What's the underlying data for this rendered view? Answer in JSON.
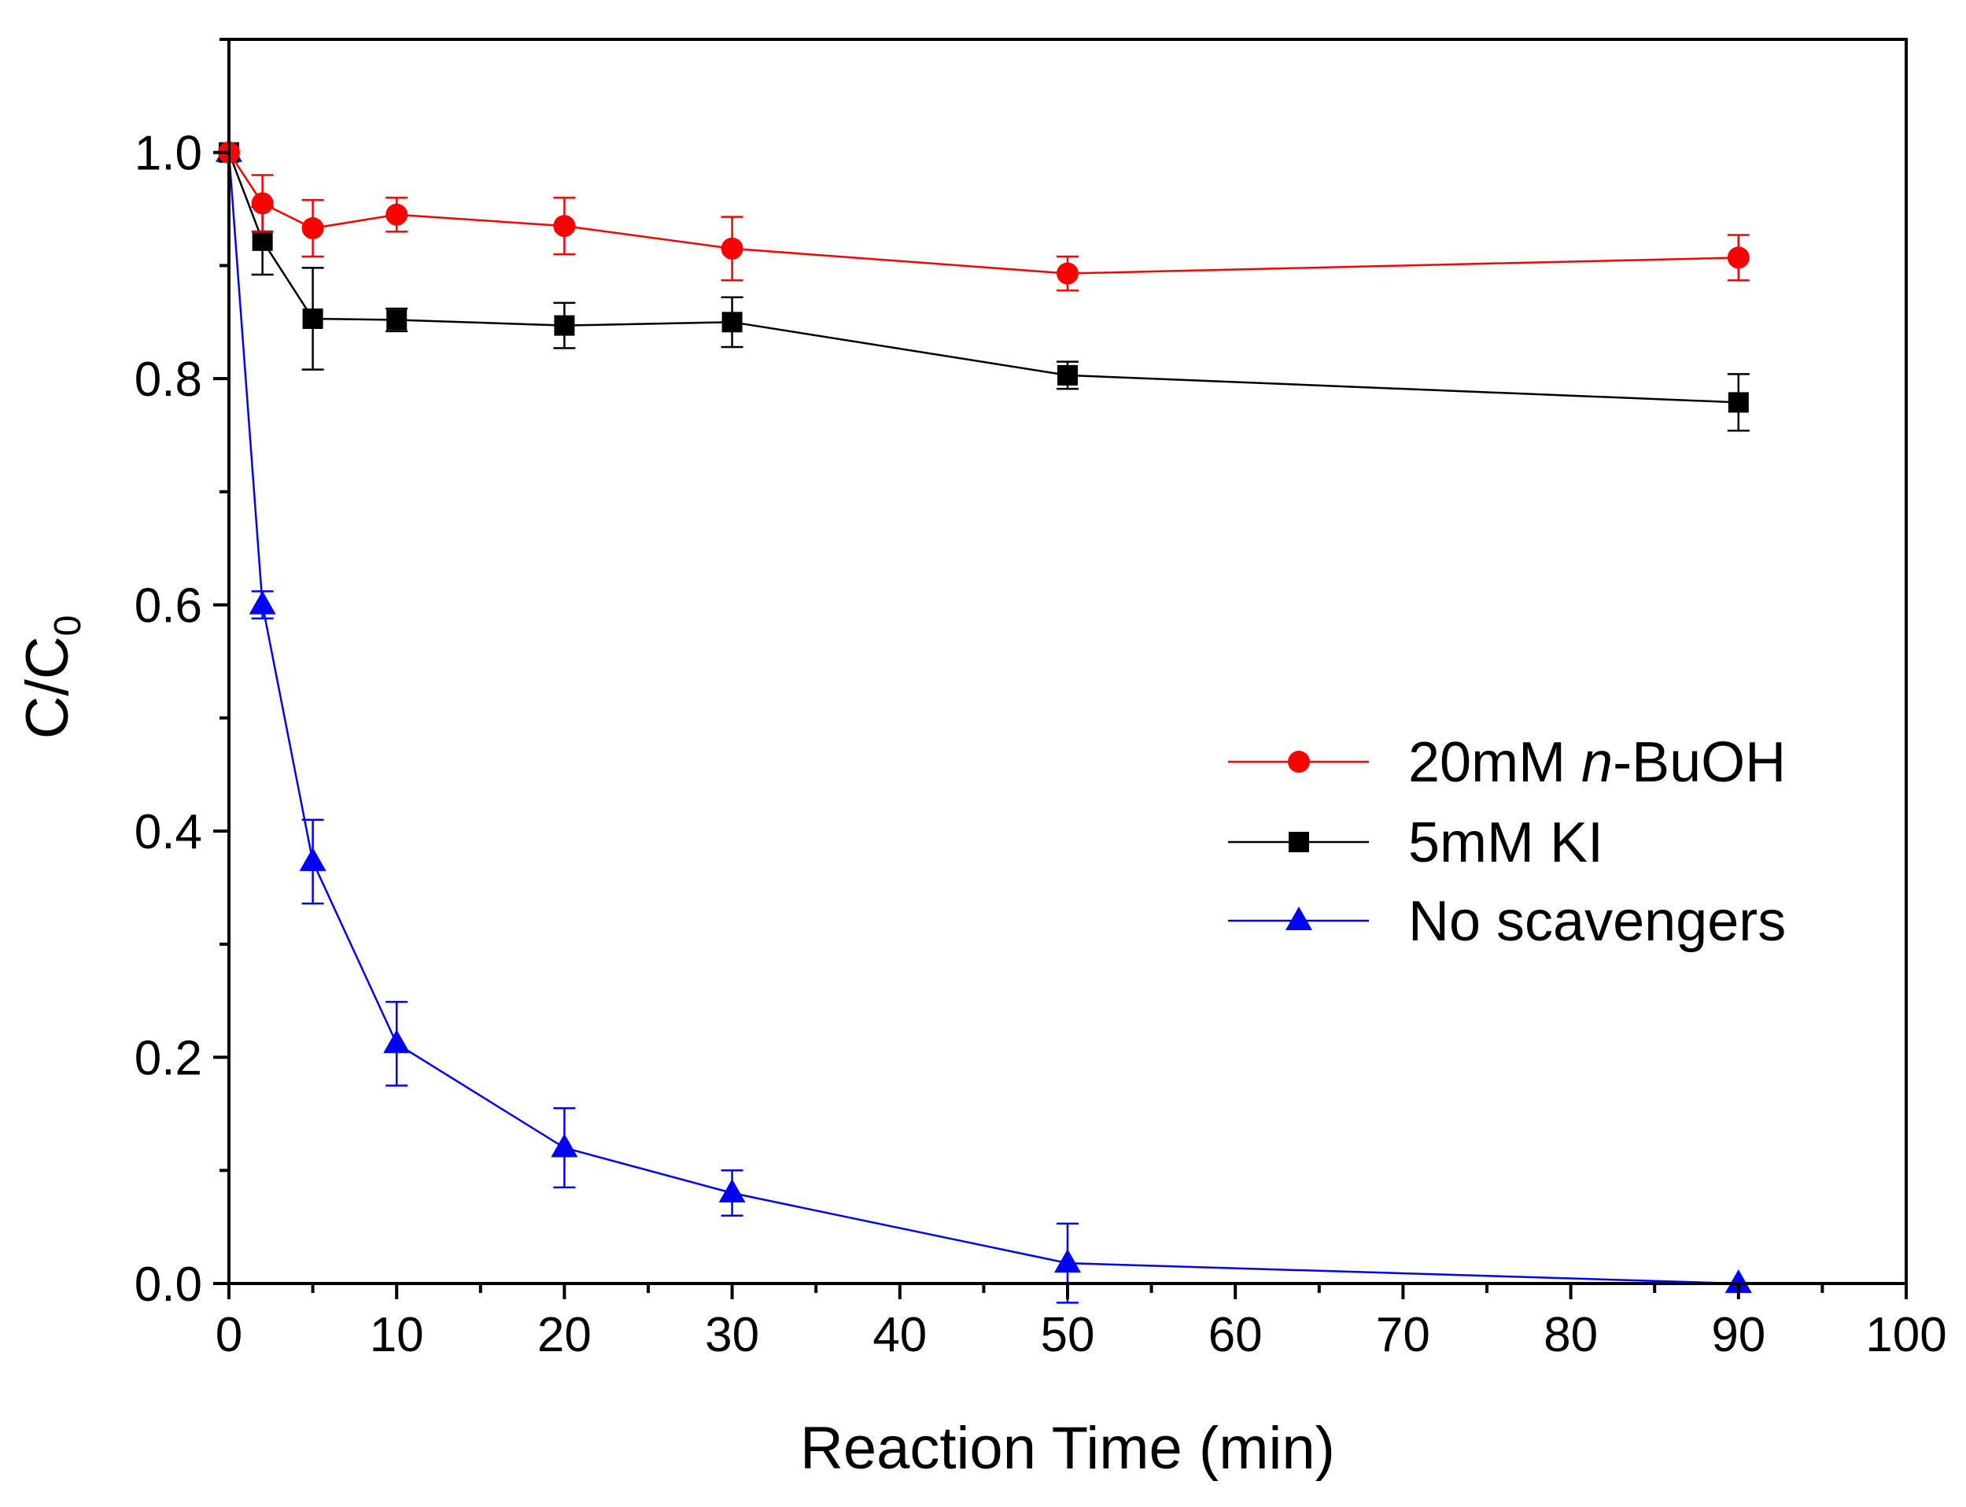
{
  "chart_data": {
    "type": "line",
    "xlabel": "Reaction Time (min)",
    "ylabel": {
      "main": "C/C",
      "subscript": "0"
    },
    "xlim": [
      0,
      100
    ],
    "ylim": [
      0.0,
      1.1
    ],
    "xticks": [
      0,
      10,
      20,
      30,
      40,
      50,
      60,
      70,
      80,
      90,
      100
    ],
    "xtick_labels": [
      "0",
      "10",
      "20",
      "30",
      "40",
      "50",
      "60",
      "70",
      "80",
      "90",
      "100"
    ],
    "yticks": [
      0.0,
      0.2,
      0.4,
      0.6,
      0.8,
      1.0
    ],
    "ytick_labels": [
      "0.0",
      "0.2",
      "0.4",
      "0.6",
      "0.8",
      "1.0"
    ],
    "grid": false,
    "legend_position": "center-right",
    "series": [
      {
        "name": "20mM n-BuOH",
        "legend_parts": [
          "20mM ",
          "n",
          "-BuOH"
        ],
        "color": "#ff0000",
        "marker": "circle",
        "x": [
          0,
          2,
          5,
          10,
          20,
          30,
          50,
          90
        ],
        "y": [
          1.0,
          0.955,
          0.933,
          0.945,
          0.935,
          0.915,
          0.893,
          0.907
        ],
        "err": [
          0.0,
          0.025,
          0.025,
          0.015,
          0.025,
          0.028,
          0.015,
          0.02
        ]
      },
      {
        "name": "5mM KI",
        "legend_parts": [
          "5mM KI"
        ],
        "color": "#000000",
        "marker": "square",
        "x": [
          0,
          2,
          5,
          10,
          20,
          30,
          50,
          90
        ],
        "y": [
          1.0,
          0.922,
          0.853,
          0.852,
          0.847,
          0.85,
          0.803,
          0.779
        ],
        "err": [
          0.0,
          0.03,
          0.045,
          0.01,
          0.02,
          0.022,
          0.012,
          0.025
        ]
      },
      {
        "name": "No scavengers",
        "legend_parts": [
          "No scavengers"
        ],
        "color": "#0000ff",
        "marker": "triangle",
        "x": [
          0,
          2,
          5,
          10,
          20,
          30,
          50,
          90
        ],
        "y": [
          1.0,
          0.6,
          0.373,
          0.212,
          0.12,
          0.08,
          0.018,
          0.0
        ],
        "err": [
          0.0,
          0.012,
          0.037,
          0.037,
          0.035,
          0.02,
          0.035,
          0.0
        ]
      }
    ]
  }
}
